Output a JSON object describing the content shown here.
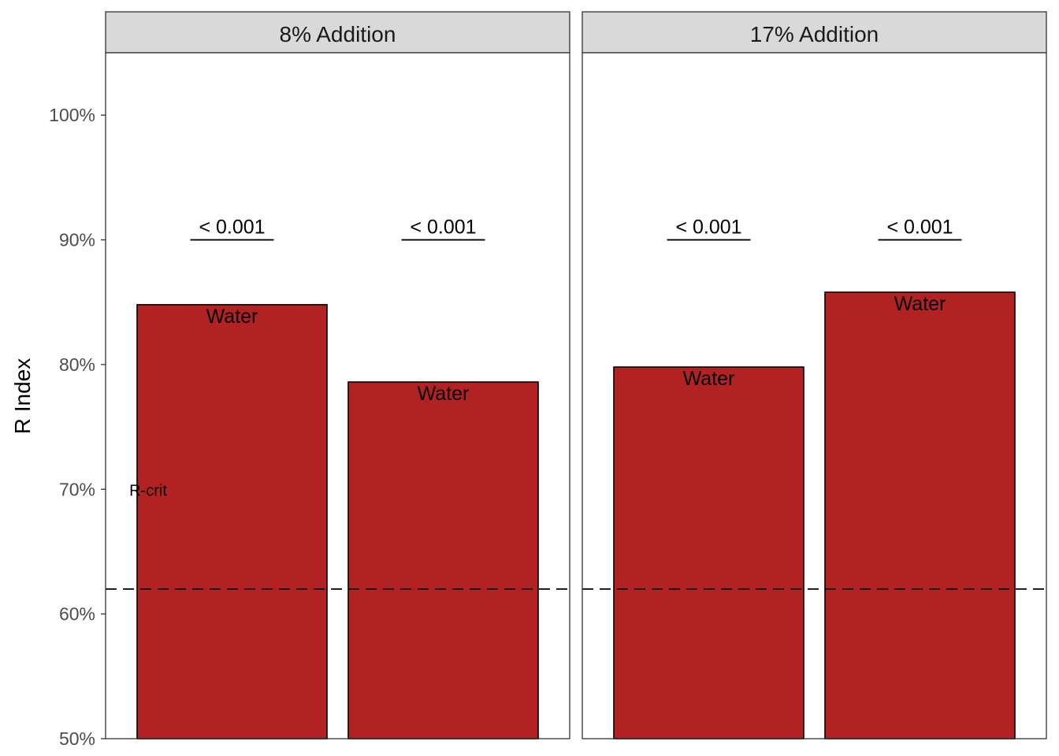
{
  "chart_data": {
    "type": "bar",
    "ylabel": "R Index",
    "ylim": [
      50,
      105
    ],
    "yticks": [
      "50%",
      "60%",
      "70%",
      "80%",
      "90%",
      "100%"
    ],
    "ytick_values": [
      50,
      60,
      70,
      80,
      90,
      100
    ],
    "bar_color": "#b22222",
    "reference_line": {
      "value": 62,
      "style": "dashed"
    },
    "reference_label": {
      "text": "R-crit",
      "value": 70
    },
    "panels": [
      {
        "title": "8% Addition",
        "bars": [
          {
            "value": 84.8,
            "label": "Water",
            "sig": "< 0.001",
            "sig_level": 90
          },
          {
            "value": 78.6,
            "label": "Water",
            "sig": "< 0.001",
            "sig_level": 90
          }
        ]
      },
      {
        "title": "17% Addition",
        "bars": [
          {
            "value": 79.8,
            "label": "Water",
            "sig": "< 0.001",
            "sig_level": 90
          },
          {
            "value": 85.8,
            "label": "Water",
            "sig": "< 0.001",
            "sig_level": 90
          }
        ]
      }
    ]
  }
}
